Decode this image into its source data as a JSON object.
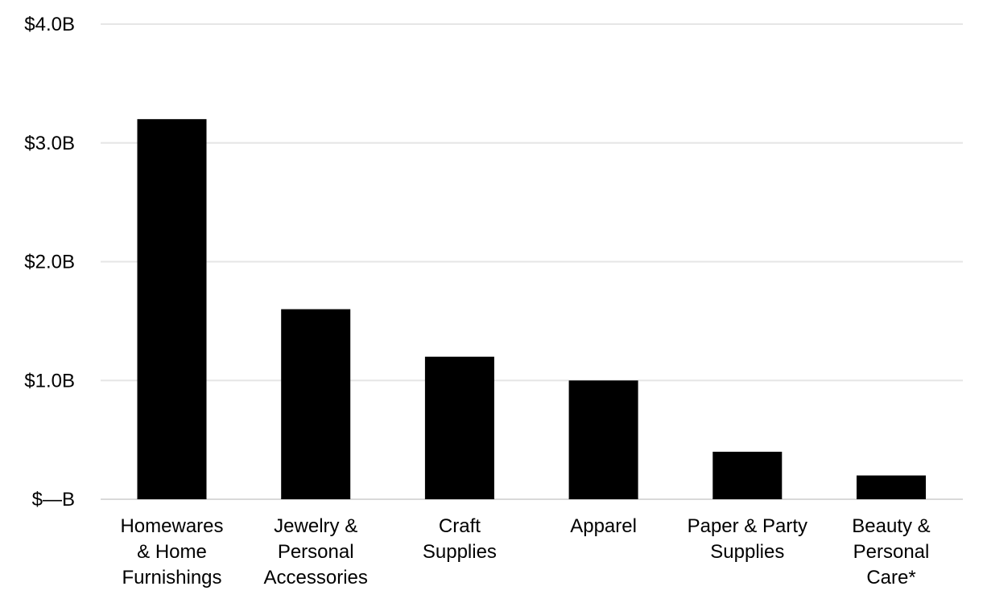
{
  "chart_data": {
    "type": "bar",
    "categories": [
      [
        "Homewares",
        "& Home",
        "Furnishings"
      ],
      [
        "Jewelry &",
        "Personal",
        "Accessories"
      ],
      [
        "Craft",
        "Supplies"
      ],
      [
        "Apparel"
      ],
      [
        "Paper & Party",
        "Supplies"
      ],
      [
        "Beauty &",
        "Personal",
        "Care*"
      ]
    ],
    "values": [
      3.2,
      1.6,
      1.2,
      1.0,
      0.4,
      0.2
    ],
    "value_unit": "billion USD",
    "y_ticks": [
      {
        "value": 0,
        "label": "$—B"
      },
      {
        "value": 1,
        "label": "$1.0B"
      },
      {
        "value": 2,
        "label": "$2.0B"
      },
      {
        "value": 3,
        "label": "$3.0B"
      },
      {
        "value": 4,
        "label": "$4.0B"
      }
    ],
    "ylim": [
      0,
      4
    ],
    "grid": true,
    "bar_color": "#000000",
    "title": "",
    "xlabel": "",
    "ylabel": ""
  }
}
